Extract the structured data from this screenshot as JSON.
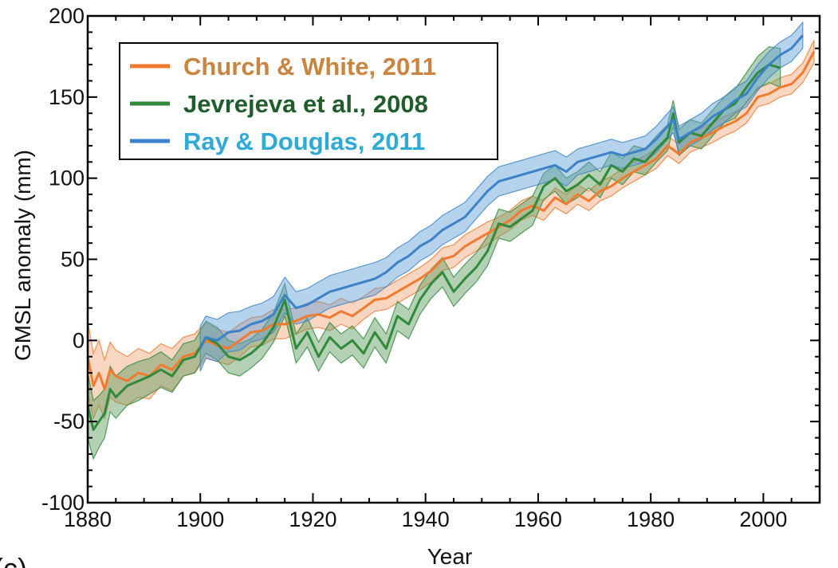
{
  "chart_data": {
    "type": "line",
    "title": "",
    "xlabel": "Year",
    "ylabel": "GMSL anomaly (mm)",
    "panel_label": "(c)",
    "xlim": [
      1880,
      2010
    ],
    "ylim": [
      -100,
      200
    ],
    "x_ticks": [
      1880,
      1900,
      1920,
      1940,
      1960,
      1980,
      2000
    ],
    "y_ticks": [
      -100,
      -50,
      0,
      50,
      100,
      150,
      200
    ],
    "legend_position": "top-left",
    "grid": false,
    "series": [
      {
        "name": "Church & White, 2011",
        "color": "#f07a2e",
        "band_color": "#f2a577",
        "label_color": "#c9843f",
        "x": [
          1880,
          1881,
          1882,
          1883,
          1884,
          1885,
          1887,
          1889,
          1891,
          1893,
          1895,
          1897,
          1899,
          1901,
          1903,
          1905,
          1907,
          1909,
          1911,
          1913,
          1915,
          1917,
          1919,
          1921,
          1923,
          1925,
          1927,
          1929,
          1931,
          1933,
          1935,
          1937,
          1939,
          1941,
          1943,
          1945,
          1947,
          1949,
          1951,
          1953,
          1955,
          1957,
          1959,
          1961,
          1963,
          1965,
          1967,
          1969,
          1971,
          1973,
          1975,
          1977,
          1979,
          1981,
          1983,
          1985,
          1987,
          1989,
          1991,
          1993,
          1995,
          1997,
          1999,
          2001,
          2003,
          2005,
          2007,
          2009
        ],
        "values": [
          -10,
          -28,
          -20,
          -30,
          -18,
          -22,
          -25,
          -20,
          -22,
          -15,
          -18,
          -10,
          -8,
          0,
          -3,
          -5,
          0,
          5,
          6,
          10,
          10,
          12,
          15,
          16,
          14,
          18,
          15,
          20,
          25,
          26,
          30,
          34,
          38,
          43,
          50,
          52,
          58,
          62,
          66,
          70,
          74,
          80,
          83,
          80,
          88,
          84,
          90,
          86,
          92,
          95,
          100,
          104,
          108,
          112,
          120,
          115,
          122,
          125,
          128,
          132,
          135,
          140,
          150,
          152,
          156,
          158,
          165,
          178
        ],
        "uncertainty": [
          22,
          20,
          20,
          18,
          17,
          16,
          15,
          15,
          14,
          13,
          13,
          12,
          12,
          11,
          10,
          10,
          10,
          9,
          9,
          9,
          9,
          8,
          8,
          8,
          8,
          8,
          8,
          7,
          7,
          7,
          7,
          7,
          7,
          7,
          7,
          7,
          7,
          7,
          7,
          6,
          6,
          6,
          6,
          6,
          6,
          6,
          6,
          6,
          6,
          6,
          6,
          6,
          6,
          6,
          6,
          6,
          6,
          6,
          6,
          6,
          6,
          6,
          6,
          6,
          6,
          6,
          6,
          7
        ]
      },
      {
        "name": "Jevrejeva et al., 2008",
        "color": "#2f8a3b",
        "band_color": "#5a9a5a",
        "label_color": "#1f5e2a",
        "x": [
          1880,
          1881,
          1882,
          1883,
          1884,
          1885,
          1887,
          1889,
          1891,
          1893,
          1895,
          1897,
          1899,
          1901,
          1903,
          1905,
          1907,
          1909,
          1911,
          1913,
          1915,
          1916,
          1917,
          1919,
          1921,
          1923,
          1925,
          1927,
          1929,
          1931,
          1933,
          1935,
          1937,
          1939,
          1941,
          1943,
          1945,
          1947,
          1949,
          1951,
          1953,
          1955,
          1957,
          1959,
          1961,
          1963,
          1965,
          1967,
          1969,
          1971,
          1973,
          1975,
          1977,
          1979,
          1981,
          1983,
          1984,
          1985,
          1987,
          1989,
          1991,
          1993,
          1995,
          1997,
          1999,
          2001,
          2003
        ],
        "values": [
          -40,
          -55,
          -50,
          -45,
          -30,
          -35,
          -28,
          -25,
          -22,
          -18,
          -22,
          -12,
          -10,
          2,
          -2,
          -10,
          -12,
          -8,
          -2,
          8,
          25,
          10,
          -5,
          5,
          -10,
          2,
          -5,
          0,
          -8,
          5,
          -5,
          15,
          10,
          25,
          35,
          42,
          30,
          38,
          45,
          55,
          72,
          70,
          75,
          80,
          95,
          100,
          92,
          96,
          102,
          96,
          108,
          104,
          112,
          110,
          118,
          125,
          140,
          122,
          128,
          126,
          134,
          142,
          146,
          156,
          165,
          170,
          168
        ],
        "uncertainty": [
          20,
          18,
          16,
          15,
          14,
          13,
          12,
          12,
          11,
          11,
          10,
          10,
          10,
          10,
          10,
          10,
          10,
          9,
          9,
          9,
          10,
          9,
          9,
          9,
          9,
          9,
          9,
          9,
          9,
          9,
          9,
          9,
          9,
          9,
          9,
          9,
          9,
          9,
          9,
          9,
          9,
          9,
          9,
          9,
          8,
          8,
          8,
          8,
          8,
          8,
          8,
          8,
          8,
          8,
          8,
          8,
          8,
          8,
          8,
          8,
          8,
          8,
          9,
          9,
          10,
          11,
          12
        ]
      },
      {
        "name": "Ray & Douglas, 2011",
        "color": "#3b82c8",
        "band_color": "#5c9ed6",
        "label_color": "#2eaad6",
        "x": [
          1900,
          1901,
          1903,
          1905,
          1907,
          1909,
          1911,
          1913,
          1915,
          1917,
          1919,
          1921,
          1923,
          1925,
          1927,
          1929,
          1931,
          1933,
          1935,
          1937,
          1939,
          1941,
          1943,
          1945,
          1947,
          1949,
          1951,
          1953,
          1955,
          1957,
          1959,
          1961,
          1963,
          1965,
          1967,
          1969,
          1971,
          1973,
          1975,
          1977,
          1979,
          1981,
          1983,
          1984,
          1985,
          1987,
          1989,
          1991,
          1993,
          1995,
          1997,
          1999,
          2001,
          2003,
          2005,
          2007
        ],
        "values": [
          -5,
          2,
          0,
          5,
          6,
          10,
          12,
          16,
          28,
          20,
          22,
          26,
          30,
          32,
          34,
          36,
          38,
          42,
          48,
          52,
          58,
          62,
          68,
          72,
          76,
          84,
          92,
          98,
          100,
          102,
          104,
          106,
          108,
          104,
          110,
          112,
          114,
          116,
          114,
          116,
          118,
          124,
          132,
          136,
          124,
          128,
          132,
          138,
          142,
          148,
          152,
          162,
          170,
          176,
          180,
          188
        ],
        "uncertainty": [
          14,
          13,
          13,
          12,
          12,
          11,
          11,
          11,
          11,
          10,
          10,
          10,
          10,
          10,
          10,
          10,
          10,
          9,
          9,
          9,
          9,
          9,
          9,
          9,
          9,
          9,
          9,
          9,
          9,
          9,
          9,
          9,
          9,
          9,
          8,
          8,
          8,
          8,
          8,
          8,
          8,
          8,
          8,
          8,
          8,
          8,
          8,
          8,
          8,
          8,
          8,
          8,
          8,
          8,
          8,
          8
        ]
      }
    ]
  }
}
